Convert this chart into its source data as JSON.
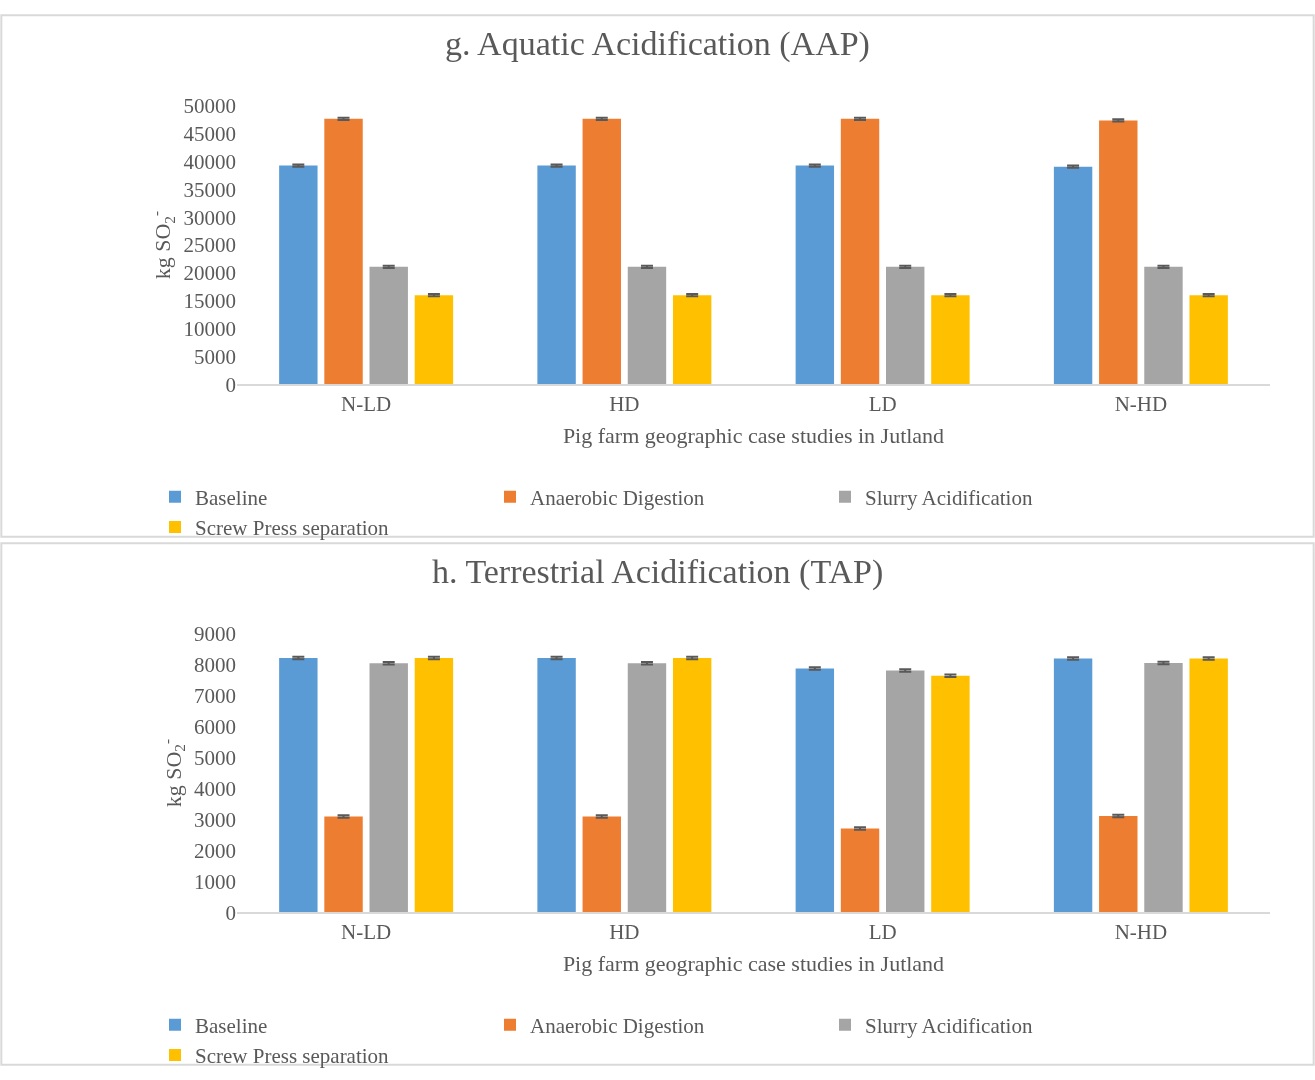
{
  "chart_data": [
    {
      "type": "bar",
      "title": "g. Aquatic Acidification (AAP)",
      "xlabel": "Pig farm geographic case studies in Jutland",
      "ylabel": "kg SO$_{2}$$^{-}$",
      "categories": [
        "N-LD",
        "HD",
        "LD",
        "N-HD"
      ],
      "series": [
        {
          "name": "Baseline",
          "color": "#5b9bd5",
          "values": [
            39300,
            39300,
            39300,
            39100
          ],
          "errors": [
            200,
            200,
            200,
            200
          ]
        },
        {
          "name": "Anaerobic Digestion",
          "color": "#ed7d31",
          "values": [
            47700,
            47700,
            47700,
            47400
          ],
          "errors": [
            200,
            200,
            200,
            200
          ]
        },
        {
          "name": "Slurry Acidification",
          "color": "#a5a5a5",
          "values": [
            21100,
            21100,
            21100,
            21100
          ],
          "errors": [
            200,
            200,
            200,
            200
          ]
        },
        {
          "name": "Screw Press separation",
          "color": "#ffc000",
          "values": [
            16000,
            16000,
            16000,
            16000
          ],
          "errors": [
            200,
            200,
            200,
            200
          ]
        }
      ],
      "ylim": [
        0,
        50000
      ],
      "yticks": [
        0,
        5000,
        10000,
        15000,
        20000,
        25000,
        30000,
        35000,
        40000,
        45000,
        50000
      ],
      "grid": false,
      "legend": "bottom"
    },
    {
      "type": "bar",
      "title": "h. Terrestrial Acidification (TAP)",
      "xlabel": "Pig farm geographic case studies in Jutland",
      "ylabel": "kg SO$_{2}$$^{-}$",
      "categories": [
        "N-LD",
        "HD",
        "LD",
        "N-HD"
      ],
      "series": [
        {
          "name": "Baseline",
          "color": "#5b9bd5",
          "values": [
            8220,
            8220,
            7880,
            8210
          ],
          "errors": [
            40,
            40,
            40,
            40
          ]
        },
        {
          "name": "Anaerobic Digestion",
          "color": "#ed7d31",
          "values": [
            3100,
            3100,
            2710,
            3110
          ],
          "errors": [
            40,
            40,
            40,
            40
          ]
        },
        {
          "name": "Slurry Acidification",
          "color": "#a5a5a5",
          "values": [
            8050,
            8050,
            7820,
            8060
          ],
          "errors": [
            40,
            40,
            40,
            40
          ]
        },
        {
          "name": "Screw Press separation",
          "color": "#ffc000",
          "values": [
            8220,
            8220,
            7650,
            8210
          ],
          "errors": [
            40,
            40,
            40,
            40
          ]
        }
      ],
      "ylim": [
        0,
        9000
      ],
      "yticks": [
        0,
        1000,
        2000,
        3000,
        4000,
        5000,
        6000,
        7000,
        8000,
        9000
      ],
      "grid": false,
      "legend": "bottom"
    }
  ]
}
